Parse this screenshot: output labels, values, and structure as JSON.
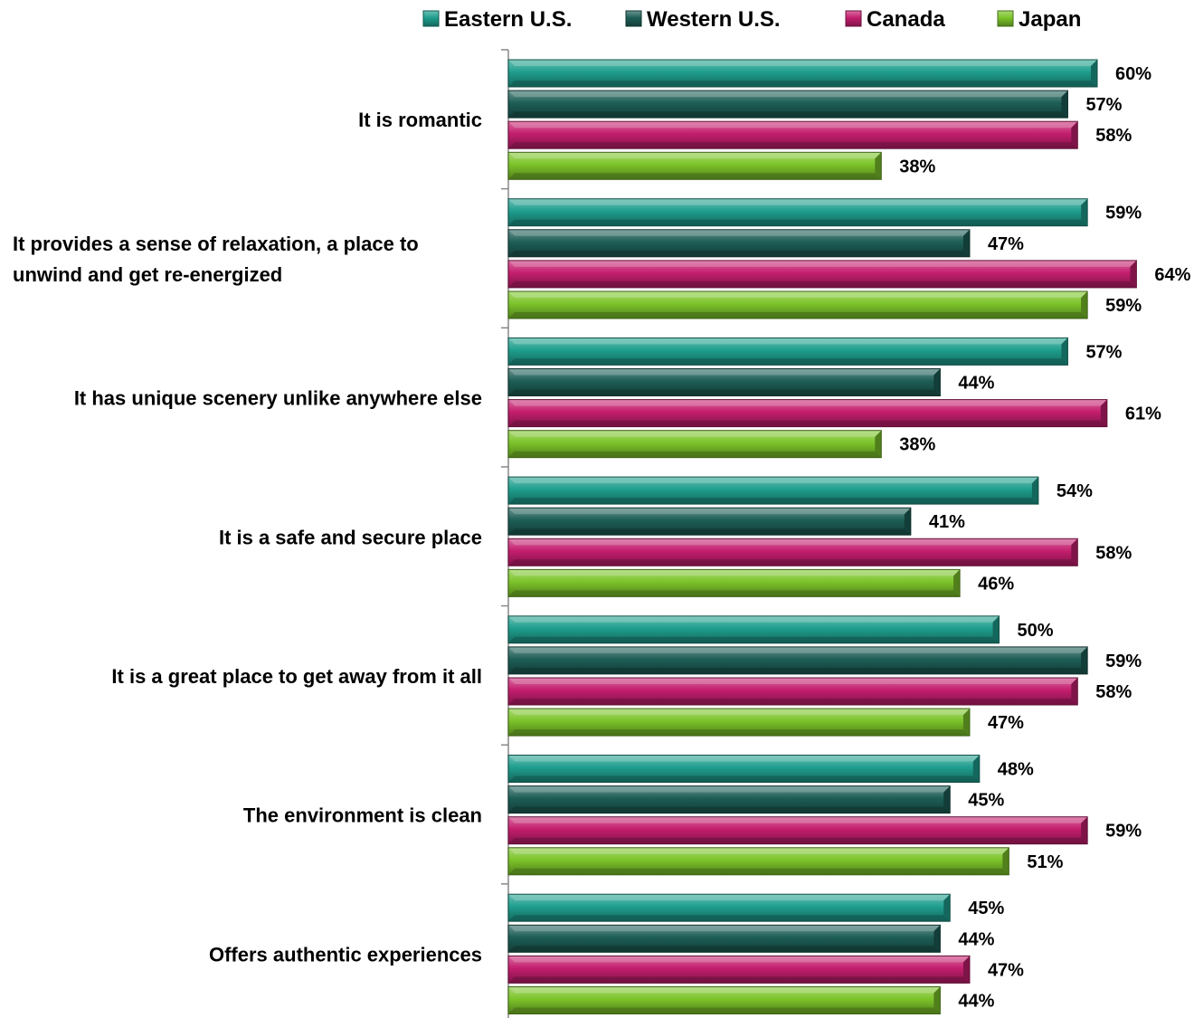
{
  "chart_data": {
    "type": "bar",
    "orientation": "horizontal",
    "categories": [
      [
        "It is romantic"
      ],
      [
        "It provides a sense of relaxation, a place to",
        "unwind and get re-energized"
      ],
      [
        "It has unique scenery unlike anywhere else"
      ],
      [
        "It is a safe and secure place"
      ],
      [
        "It is a great place to get away from it all"
      ],
      [
        "The environment is clean"
      ],
      [
        "Offers authentic experiences"
      ]
    ],
    "series": [
      {
        "name": "Eastern U.S.",
        "color": "#1f9e8e",
        "values": [
          60,
          59,
          57,
          54,
          50,
          48,
          45
        ]
      },
      {
        "name": "Western U.S.",
        "color": "#1d5e56",
        "values": [
          57,
          47,
          44,
          41,
          59,
          45,
          44
        ]
      },
      {
        "name": "Canada",
        "color": "#c41e6e",
        "values": [
          58,
          64,
          61,
          58,
          58,
          59,
          47
        ]
      },
      {
        "name": "Japan",
        "color": "#7cc42a",
        "values": [
          38,
          59,
          38,
          46,
          47,
          51,
          44
        ]
      }
    ],
    "value_suffix": "%",
    "xlim": [
      0,
      64
    ],
    "legend_position": "top",
    "grid": false
  }
}
